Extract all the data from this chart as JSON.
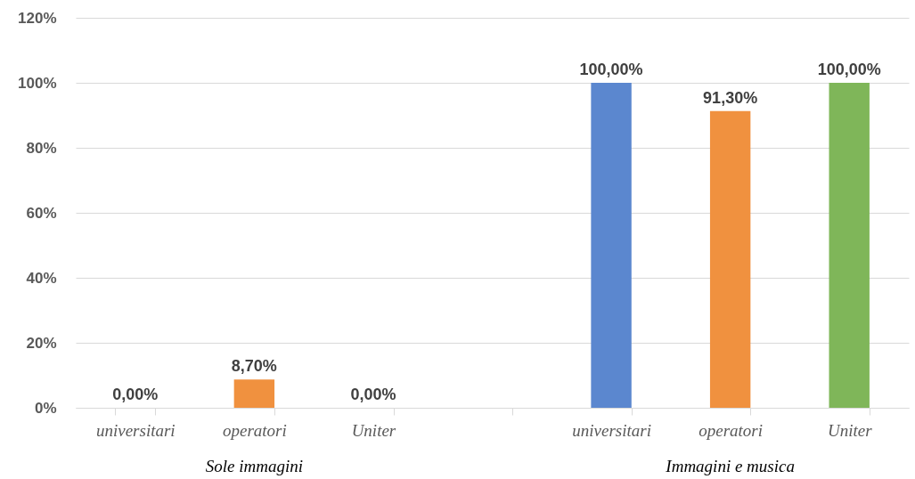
{
  "chart_data": {
    "type": "bar",
    "categories": [
      "universitari",
      "operatori",
      "Uniter",
      null,
      "universitari",
      "operatori",
      "Uniter"
    ],
    "values": [
      0,
      8.7,
      0,
      null,
      100,
      91.3,
      100
    ],
    "colors": [
      "#5b87cf",
      "#f0913f",
      "#7fb659",
      "#5b87cf",
      "#5b87cf",
      "#f0913f",
      "#7fb659"
    ],
    "value_labels": [
      "0,00%",
      "8,70%",
      "0,00%",
      null,
      "100,00%",
      "91,30%",
      "100,00%"
    ],
    "ylim": [
      0,
      120
    ],
    "yticks": [
      {
        "value": 0,
        "label": "0%"
      },
      {
        "value": 20,
        "label": "20%"
      },
      {
        "value": 40,
        "label": "40%"
      },
      {
        "value": 60,
        "label": "60%"
      },
      {
        "value": 80,
        "label": "80%"
      },
      {
        "value": 100,
        "label": "100%"
      },
      {
        "value": 120,
        "label": "120%"
      }
    ],
    "grid": "y",
    "annotations": [
      "Sole immagini",
      "Immagini e musica"
    ]
  }
}
